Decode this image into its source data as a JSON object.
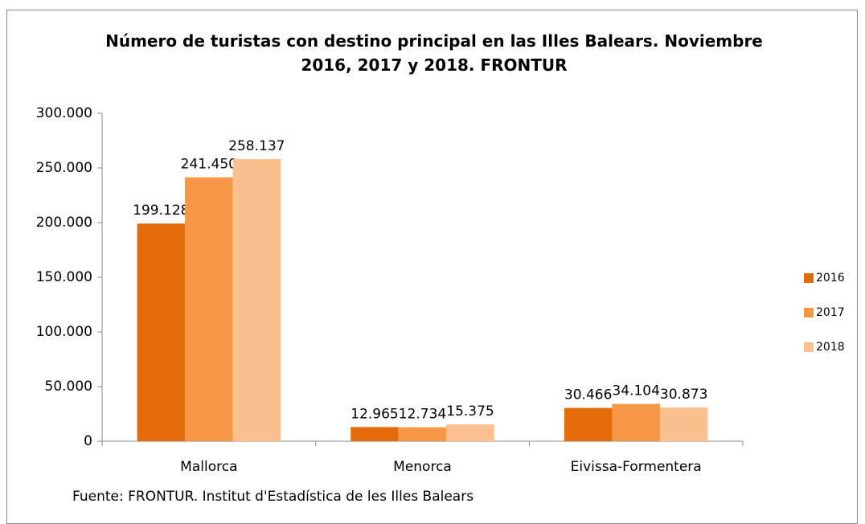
{
  "chart_data": {
    "type": "bar",
    "title": "Número de turistas con destino principal en  las Illes Balears.  Noviembre 2016, 2017 y 2018. FRONTUR",
    "source": "Fuente: FRONTUR. Institut d'Estadística de les Illes Balears",
    "categories": [
      "Mallorca",
      "Menorca",
      "Eivissa-Formentera"
    ],
    "series": [
      {
        "name": "2016",
        "color": "#e36c0a",
        "values": [
          199128,
          12965,
          30466
        ],
        "value_labels": [
          "199.128",
          "12.965",
          "30.466"
        ]
      },
      {
        "name": "2017",
        "color": "#f79646",
        "values": [
          241450,
          12734,
          34104
        ],
        "value_labels": [
          "241.450",
          "12.734",
          "34.104"
        ]
      },
      {
        "name": "2018",
        "color": "#fac090",
        "values": [
          258137,
          15375,
          30873
        ],
        "value_labels": [
          "258.137",
          "15.375",
          "30.873"
        ]
      }
    ],
    "ylim": [
      0,
      300000
    ],
    "yticks": [
      0,
      {
        "value": 50000,
        "label": "50.000"
      },
      {
        "value": 100000,
        "label": "100.000"
      },
      {
        "value": 150000,
        "label": "150.000"
      },
      {
        "value": 200000,
        "label": "200.000"
      },
      {
        "value": 250000,
        "label": "250.000"
      },
      {
        "value": 300000,
        "label": "300.000"
      }
    ],
    "legend": "right"
  }
}
